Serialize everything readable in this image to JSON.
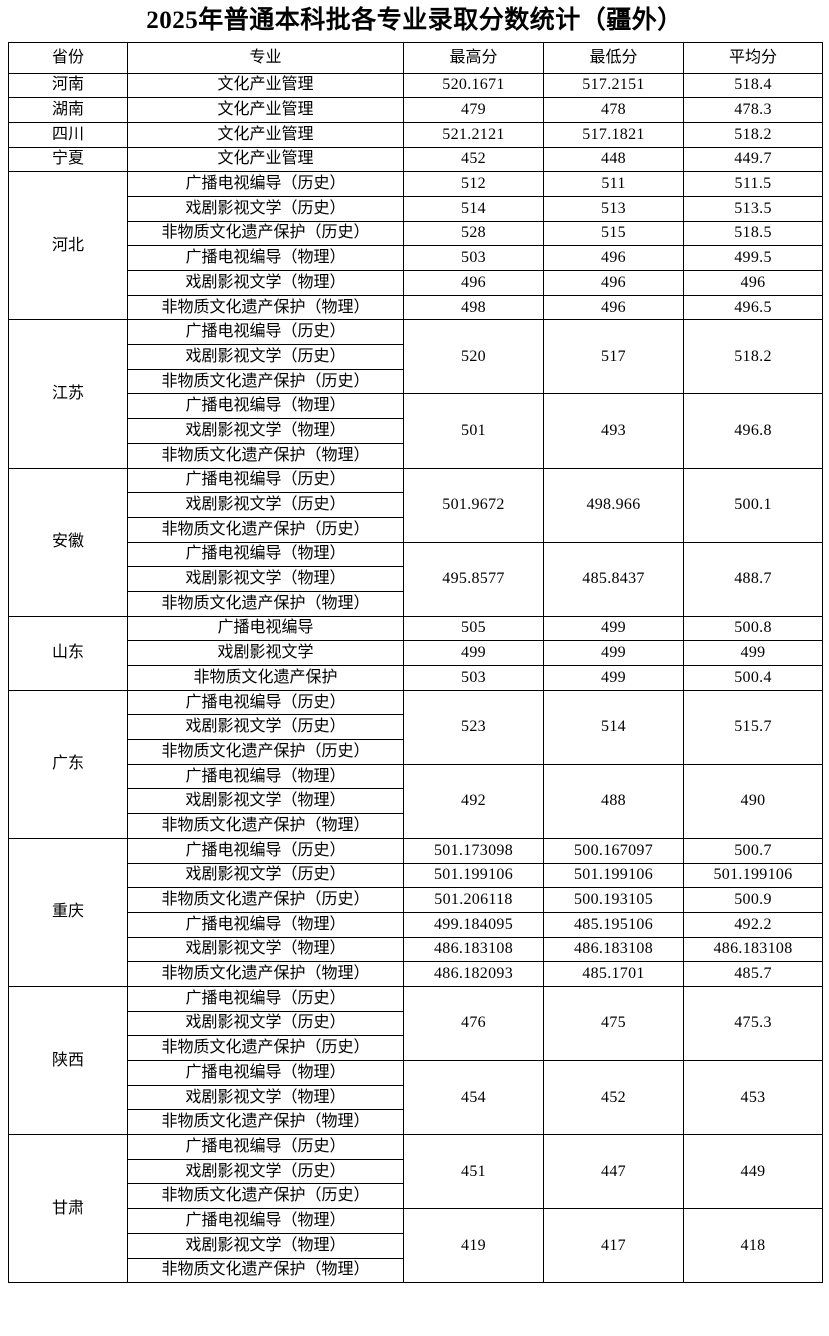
{
  "title": "2025年普通本科批各专业录取分数统计（疆外）",
  "headers": [
    "省份",
    "专业",
    "最高分",
    "最低分",
    "平均分"
  ],
  "groups": [
    {
      "province": "河南",
      "majors": [
        "文化产业管理"
      ],
      "scores": [
        {
          "span": 1,
          "max": "520.1671",
          "min": "517.2151",
          "avg": "518.4"
        }
      ]
    },
    {
      "province": "湖南",
      "majors": [
        "文化产业管理"
      ],
      "scores": [
        {
          "span": 1,
          "max": "479",
          "min": "478",
          "avg": "478.3"
        }
      ]
    },
    {
      "province": "四川",
      "majors": [
        "文化产业管理"
      ],
      "scores": [
        {
          "span": 1,
          "max": "521.2121",
          "min": "517.1821",
          "avg": "518.2"
        }
      ]
    },
    {
      "province": "宁夏",
      "majors": [
        "文化产业管理"
      ],
      "scores": [
        {
          "span": 1,
          "max": "452",
          "min": "448",
          "avg": "449.7"
        }
      ]
    },
    {
      "province": "河北",
      "majors": [
        "广播电视编导（历史）",
        "戏剧影视文学（历史）",
        "非物质文化遗产保护（历史）",
        "广播电视编导（物理）",
        "戏剧影视文学（物理）",
        "非物质文化遗产保护（物理）"
      ],
      "scores": [
        {
          "span": 1,
          "max": "512",
          "min": "511",
          "avg": "511.5"
        },
        {
          "span": 1,
          "max": "514",
          "min": "513",
          "avg": "513.5"
        },
        {
          "span": 1,
          "max": "528",
          "min": "515",
          "avg": "518.5"
        },
        {
          "span": 1,
          "max": "503",
          "min": "496",
          "avg": "499.5"
        },
        {
          "span": 1,
          "max": "496",
          "min": "496",
          "avg": "496"
        },
        {
          "span": 1,
          "max": "498",
          "min": "496",
          "avg": "496.5"
        }
      ]
    },
    {
      "province": "江苏",
      "majors": [
        "广播电视编导（历史）",
        "戏剧影视文学（历史）",
        "非物质文化遗产保护（历史）",
        "广播电视编导（物理）",
        "戏剧影视文学（物理）",
        "非物质文化遗产保护（物理）"
      ],
      "scores": [
        {
          "span": 3,
          "max": "520",
          "min": "517",
          "avg": "518.2"
        },
        {
          "span": 3,
          "max": "501",
          "min": "493",
          "avg": "496.8"
        }
      ]
    },
    {
      "province": "安徽",
      "majors": [
        "广播电视编导（历史）",
        "戏剧影视文学（历史）",
        "非物质文化遗产保护（历史）",
        "广播电视编导（物理）",
        "戏剧影视文学（物理）",
        "非物质文化遗产保护（物理）"
      ],
      "scores": [
        {
          "span": 3,
          "max": "501.9672",
          "min": "498.966",
          "avg": "500.1"
        },
        {
          "span": 3,
          "max": "495.8577",
          "min": "485.8437",
          "avg": "488.7"
        }
      ]
    },
    {
      "province": "山东",
      "majors": [
        "广播电视编导",
        "戏剧影视文学",
        "非物质文化遗产保护"
      ],
      "scores": [
        {
          "span": 1,
          "max": "505",
          "min": "499",
          "avg": "500.8"
        },
        {
          "span": 1,
          "max": "499",
          "min": "499",
          "avg": "499"
        },
        {
          "span": 1,
          "max": "503",
          "min": "499",
          "avg": "500.4"
        }
      ]
    },
    {
      "province": "广东",
      "majors": [
        "广播电视编导（历史）",
        "戏剧影视文学（历史）",
        "非物质文化遗产保护（历史）",
        "广播电视编导（物理）",
        "戏剧影视文学（物理）",
        "非物质文化遗产保护（物理）"
      ],
      "scores": [
        {
          "span": 3,
          "max": "523",
          "min": "514",
          "avg": "515.7"
        },
        {
          "span": 3,
          "max": "492",
          "min": "488",
          "avg": "490"
        }
      ]
    },
    {
      "province": "重庆",
      "majors": [
        "广播电视编导（历史）",
        "戏剧影视文学（历史）",
        "非物质文化遗产保护（历史）",
        "广播电视编导（物理）",
        "戏剧影视文学（物理）",
        "非物质文化遗产保护（物理）"
      ],
      "scores": [
        {
          "span": 1,
          "max": "501.173098",
          "min": "500.167097",
          "avg": "500.7"
        },
        {
          "span": 1,
          "max": "501.199106",
          "min": "501.199106",
          "avg": "501.199106"
        },
        {
          "span": 1,
          "max": "501.206118",
          "min": "500.193105",
          "avg": "500.9"
        },
        {
          "span": 1,
          "max": "499.184095",
          "min": "485.195106",
          "avg": "492.2"
        },
        {
          "span": 1,
          "max": "486.183108",
          "min": "486.183108",
          "avg": "486.183108"
        },
        {
          "span": 1,
          "max": "486.182093",
          "min": "485.1701",
          "avg": "485.7"
        }
      ]
    },
    {
      "province": "陕西",
      "majors": [
        "广播电视编导（历史）",
        "戏剧影视文学（历史）",
        "非物质文化遗产保护（历史）",
        "广播电视编导（物理）",
        "戏剧影视文学（物理）",
        "非物质文化遗产保护（物理）"
      ],
      "scores": [
        {
          "span": 3,
          "max": "476",
          "min": "475",
          "avg": "475.3"
        },
        {
          "span": 3,
          "max": "454",
          "min": "452",
          "avg": "453"
        }
      ]
    },
    {
      "province": "甘肃",
      "majors": [
        "广播电视编导（历史）",
        "戏剧影视文学（历史）",
        "非物质文化遗产保护（历史）",
        "广播电视编导（物理）",
        "戏剧影视文学（物理）",
        "非物质文化遗产保护（物理）"
      ],
      "scores": [
        {
          "span": 3,
          "max": "451",
          "min": "447",
          "avg": "449"
        },
        {
          "span": 3,
          "max": "419",
          "min": "417",
          "avg": "418"
        }
      ]
    }
  ]
}
